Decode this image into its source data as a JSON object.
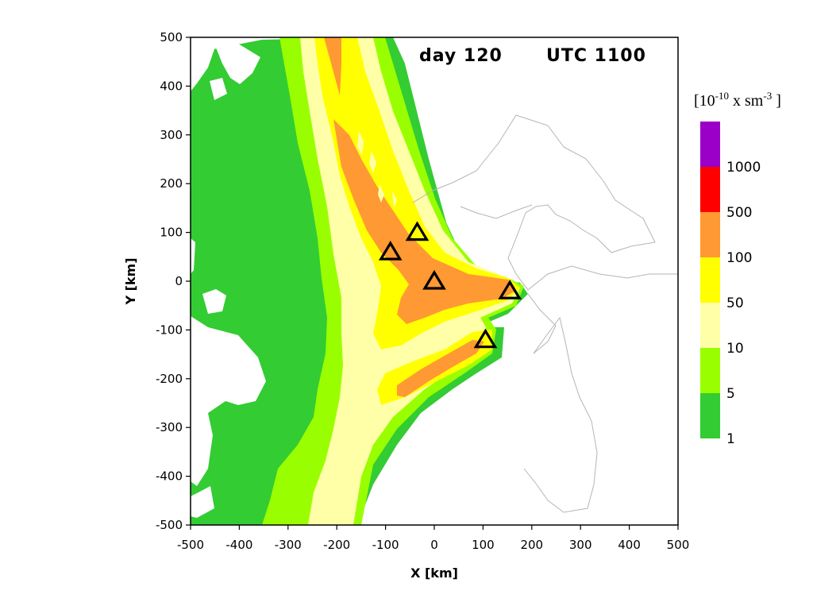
{
  "chart_data": {
    "type": "contour_map",
    "title_left": "day 120",
    "title_right": "UTC 1100",
    "xlabel": "X [km]",
    "ylabel": "Y [km]",
    "xlim": [
      -500,
      500
    ],
    "ylim": [
      -500,
      500
    ],
    "xticks": [
      -500,
      -400,
      -300,
      -200,
      -100,
      0,
      100,
      200,
      300,
      400,
      500
    ],
    "yticks": [
      -500,
      -400,
      -300,
      -200,
      -100,
      0,
      100,
      200,
      300,
      400,
      500
    ],
    "grid": false,
    "legend": {
      "position": "right",
      "unit_prefix": "[10",
      "unit_exp1": "-10",
      "unit_mid": " x sm",
      "unit_exp2": "-3",
      "unit_suffix": " ]",
      "labels": [
        "1000",
        "500",
        "100",
        "50",
        "10",
        "5",
        "1"
      ],
      "colors": [
        "#9a00c8",
        "#ff0000",
        "#ff9933",
        "#ffff00",
        "#ffffa8",
        "#99ff00",
        "#33cc33"
      ]
    },
    "levels": [
      {
        "min": 1,
        "max": 5,
        "color": "#33cc33"
      },
      {
        "min": 5,
        "max": 10,
        "color": "#99ff00"
      },
      {
        "min": 10,
        "max": 50,
        "color": "#ffffa8"
      },
      {
        "min": 50,
        "max": 100,
        "color": "#ffff00"
      },
      {
        "min": 100,
        "max": 500,
        "color": "#ff9933"
      },
      {
        "min": 500,
        "max": 1000,
        "color": "#ff0000"
      },
      {
        "min": 1000,
        "max": null,
        "color": "#9a00c8"
      }
    ],
    "sources": [
      {
        "x": -35,
        "y": 100
      },
      {
        "x": -90,
        "y": 60
      },
      {
        "x": 0,
        "y": 0
      },
      {
        "x": 155,
        "y": -20
      },
      {
        "x": 105,
        "y": -120
      }
    ]
  }
}
